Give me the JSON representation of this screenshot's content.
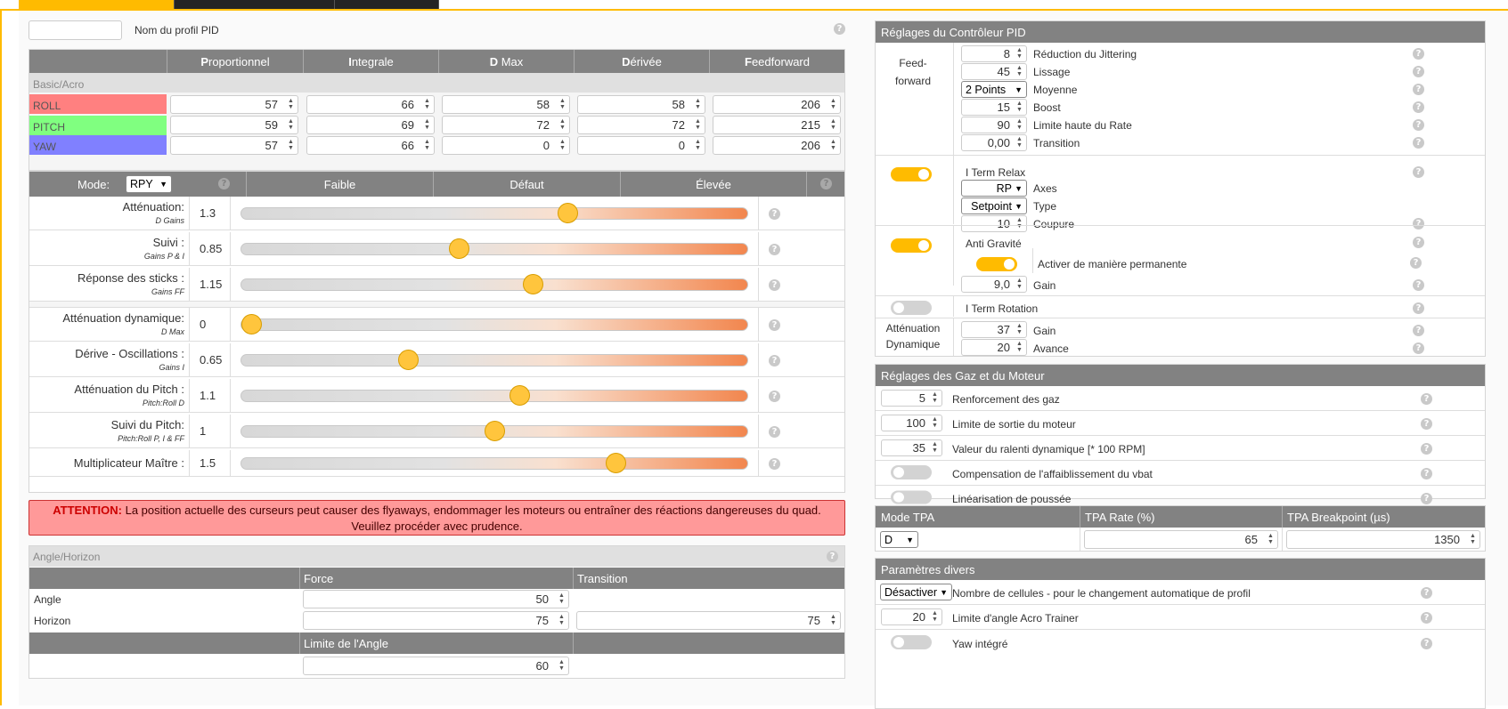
{
  "profile": {
    "name_value": "",
    "name_label": "Nom du profil PID"
  },
  "pid": {
    "headers": [
      {
        "lead": "P",
        "rest": "roportionnel"
      },
      {
        "lead": "I",
        "rest": "ntegrale"
      },
      {
        "lead": "D",
        "rest": " Max"
      },
      {
        "lead": "D",
        "rest": "érivée"
      },
      {
        "lead": "F",
        "rest": "eedforward"
      }
    ],
    "section": "Basic/Acro",
    "rows": [
      {
        "axis": "ROLL",
        "color": "#ff8080",
        "values": [
          "57",
          "66",
          "58",
          "58",
          "206"
        ]
      },
      {
        "axis": "PITCH",
        "color": "#80ff80",
        "values": [
          "59",
          "69",
          "72",
          "72",
          "215"
        ]
      },
      {
        "axis": "YAW",
        "color": "#8080ff",
        "values": [
          "57",
          "66",
          "0",
          "0",
          "206"
        ]
      }
    ]
  },
  "sliders": {
    "mode_label": "Mode:",
    "mode_value": "RPY",
    "col_low": "Faible",
    "col_default": "Défaut",
    "col_high": "Élevée",
    "items": [
      {
        "label": "Atténuation:",
        "sub": "D Gains",
        "value": "1.3",
        "pos": 0.645
      },
      {
        "label": "Suivi :",
        "sub": "Gains P & I",
        "value": "0.85",
        "pos": 0.43
      },
      {
        "label": "Réponse des sticks :",
        "sub": "Gains FF",
        "value": "1.15",
        "pos": 0.575
      },
      {
        "label": "Atténuation dynamique:",
        "sub": "D Max",
        "value": "0",
        "pos": 0.02
      },
      {
        "label": "Dérive - Oscillations :",
        "sub": "Gains I",
        "value": "0.65",
        "pos": 0.33
      },
      {
        "label": "Atténuation du Pitch :",
        "sub": "Pitch:Roll D",
        "value": "1.1",
        "pos": 0.55
      },
      {
        "label": "Suivi du Pitch:",
        "sub": "Pitch:Roll P, I & FF",
        "value": "1",
        "pos": 0.5
      },
      {
        "label": "Multiplicateur Maître :",
        "sub": "",
        "value": "1.5",
        "pos": 0.74
      }
    ]
  },
  "warning": {
    "prefix": "ATTENTION:",
    "text": "La position actuelle des curseurs peut causer des flyaways, endommager les moteurs ou entraîner des réactions dangereuses du quad. Veuillez procéder avec prudence."
  },
  "angle": {
    "title": "Angle/Horizon",
    "col_force": "Force",
    "col_transition": "Transition",
    "angle_label": "Angle",
    "angle_force": "50",
    "horizon_label": "Horizon",
    "horizon_force": "75",
    "horizon_transition": "75",
    "limit_label": "Limite de l'Angle",
    "limit_value": "60"
  },
  "controller": {
    "title": "Réglages du Contrôleur PID",
    "ff_label1": "Feed-",
    "ff_label2": "forward",
    "ff": [
      {
        "value": "8",
        "label": "Réduction du Jittering"
      },
      {
        "value": "45",
        "label": "Lissage"
      },
      {
        "value": "2 Points",
        "label": "Moyenne",
        "select": true
      },
      {
        "value": "15",
        "label": "Boost"
      },
      {
        "value": "90",
        "label": "Limite haute du Rate"
      },
      {
        "value": "0,00",
        "label": "Transition"
      }
    ],
    "iterm_relax": "I Term Relax",
    "axes_value": "RP",
    "axes_label": "Axes",
    "type_value": "Setpoint",
    "type_label": "Type",
    "cutoff_value": "10",
    "cutoff_label": "Coupure",
    "anti_gravity": "Anti Gravité",
    "ag_permanent": "Activer de manière permanente",
    "ag_gain_value": "9,0",
    "ag_gain_label": "Gain",
    "iterm_rotation": "I Term Rotation",
    "dyn_label1": "Atténuation",
    "dyn_label2": "Dynamique",
    "dyn_gain_value": "37",
    "dyn_gain_label": "Gain",
    "dyn_adv_value": "20",
    "dyn_adv_label": "Avance"
  },
  "throttle": {
    "title": "Réglages des Gaz et du Moteur",
    "boost_value": "5",
    "boost_label": "Renforcement des gaz",
    "limit_value": "100",
    "limit_label": "Limite de sortie du moteur",
    "idle_value": "35",
    "idle_label": "Valeur du ralenti dynamique [* 100 RPM]",
    "vbat_label": "Compensation de l'affaiblissement du vbat",
    "linear_label": "Linéarisation de poussée"
  },
  "tpa": {
    "mode_header": "Mode TPA",
    "rate_header": "TPA Rate (%)",
    "bp_header": "TPA Breakpoint (µs)",
    "mode_value": "D",
    "rate_value": "65",
    "bp_value": "1350"
  },
  "misc": {
    "title": "Paramètres divers",
    "cells_value": "Désactiver",
    "cells_label": "Nombre de cellules - pour le changement automatique de profil",
    "acro_value": "20",
    "acro_label": "Limite d'angle Acro Trainer",
    "yaw_label": "Yaw intégré"
  },
  "colors": {
    "accent": "#ffbb00",
    "header": "#828282",
    "warning_bg": "#ff9999",
    "warning_text": "#cc0000"
  }
}
